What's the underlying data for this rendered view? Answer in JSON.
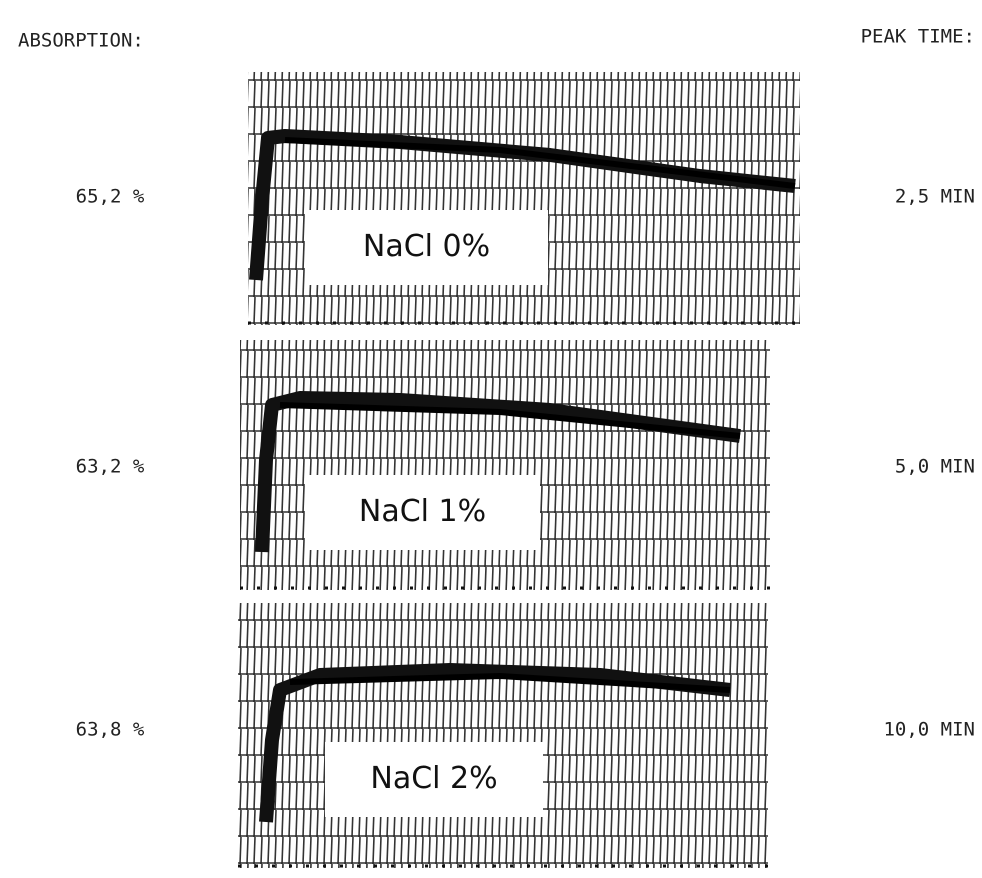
{
  "header": {
    "absorption": "ABSORPTION:",
    "peak_time": "PEAK TIME:"
  },
  "rows": [
    {
      "absorption": "65,2 %",
      "label": "NaCl 0%",
      "peak_time": "2,5 MIN"
    },
    {
      "absorption": "63,2 %",
      "label": "NaCl 1%",
      "peak_time": "5,0 MIN"
    },
    {
      "absorption": "63,8 %",
      "label": "NaCl 2%",
      "peak_time": "10,0 MIN"
    }
  ]
}
